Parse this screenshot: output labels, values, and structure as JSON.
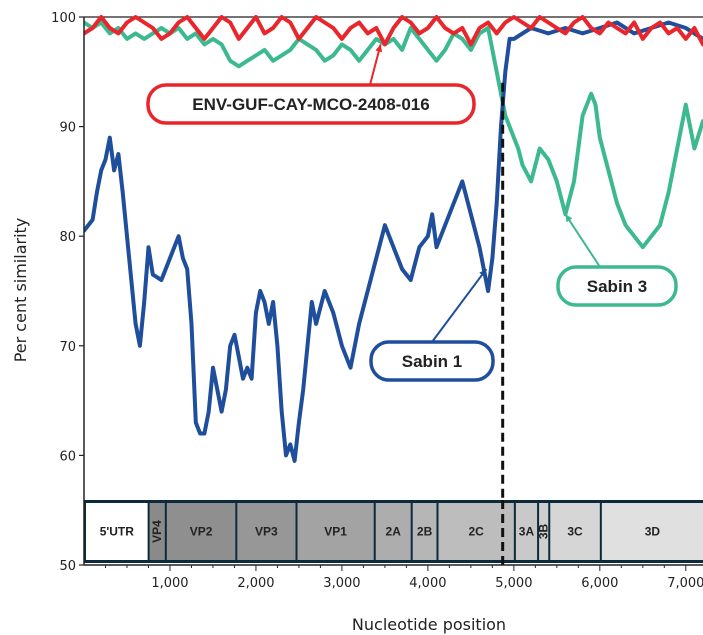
{
  "chart_data": {
    "type": "line",
    "xlabel": "Nucleotide position",
    "ylabel": "Per cent similarity",
    "xlim": [
      0,
      7200
    ],
    "ylim": [
      50,
      100
    ],
    "x_ticks": [
      1000,
      2000,
      3000,
      4000,
      5000,
      6000,
      7000
    ],
    "x_tick_labels": [
      "1,000",
      "2,000",
      "3,000",
      "4,000",
      "5,000",
      "6,000",
      "7,000"
    ],
    "y_ticks": [
      50,
      60,
      70,
      80,
      90,
      100
    ],
    "y_tick_labels": [
      "50",
      "60",
      "70",
      "80",
      "90",
      "100"
    ],
    "breakpoint_x": 4870,
    "series": [
      {
        "name": "Sabin 1",
        "color": "#1f4e9c",
        "points": [
          [
            0,
            80.5
          ],
          [
            100,
            81.5
          ],
          [
            150,
            84
          ],
          [
            200,
            86
          ],
          [
            250,
            87
          ],
          [
            300,
            89
          ],
          [
            350,
            86
          ],
          [
            400,
            87.5
          ],
          [
            450,
            84
          ],
          [
            500,
            80
          ],
          [
            550,
            76
          ],
          [
            600,
            72
          ],
          [
            650,
            70
          ],
          [
            700,
            74
          ],
          [
            750,
            79
          ],
          [
            800,
            76.5
          ],
          [
            900,
            76
          ],
          [
            1000,
            78
          ],
          [
            1100,
            80
          ],
          [
            1150,
            78
          ],
          [
            1200,
            77
          ],
          [
            1250,
            72
          ],
          [
            1300,
            63
          ],
          [
            1350,
            62
          ],
          [
            1400,
            62
          ],
          [
            1450,
            64
          ],
          [
            1500,
            68
          ],
          [
            1550,
            66
          ],
          [
            1600,
            64
          ],
          [
            1650,
            66
          ],
          [
            1700,
            70
          ],
          [
            1750,
            71
          ],
          [
            1800,
            69
          ],
          [
            1850,
            67
          ],
          [
            1900,
            68
          ],
          [
            1950,
            67
          ],
          [
            2000,
            73
          ],
          [
            2050,
            75
          ],
          [
            2100,
            74
          ],
          [
            2150,
            72
          ],
          [
            2200,
            74
          ],
          [
            2250,
            70
          ],
          [
            2300,
            64
          ],
          [
            2350,
            60
          ],
          [
            2400,
            61
          ],
          [
            2450,
            59.5
          ],
          [
            2500,
            63
          ],
          [
            2550,
            66
          ],
          [
            2600,
            70
          ],
          [
            2650,
            74
          ],
          [
            2700,
            72
          ],
          [
            2800,
            75
          ],
          [
            2900,
            73
          ],
          [
            3000,
            70
          ],
          [
            3100,
            68
          ],
          [
            3200,
            72
          ],
          [
            3300,
            75
          ],
          [
            3400,
            78
          ],
          [
            3500,
            81
          ],
          [
            3600,
            79
          ],
          [
            3700,
            77
          ],
          [
            3800,
            76
          ],
          [
            3900,
            79
          ],
          [
            4000,
            80
          ],
          [
            4050,
            82
          ],
          [
            4100,
            79
          ],
          [
            4200,
            81
          ],
          [
            4300,
            83
          ],
          [
            4400,
            85
          ],
          [
            4500,
            82
          ],
          [
            4600,
            79
          ],
          [
            4650,
            77
          ],
          [
            4700,
            75
          ],
          [
            4750,
            78
          ],
          [
            4800,
            83
          ],
          [
            4850,
            90
          ],
          [
            4900,
            95
          ],
          [
            4950,
            98
          ],
          [
            5000,
            98
          ],
          [
            5100,
            98.5
          ],
          [
            5200,
            99
          ],
          [
            5400,
            98.5
          ],
          [
            5600,
            99
          ],
          [
            5800,
            98.5
          ],
          [
            6000,
            99
          ],
          [
            6200,
            99.5
          ],
          [
            6400,
            98.5
          ],
          [
            6600,
            99
          ],
          [
            6800,
            99.5
          ],
          [
            7000,
            99
          ],
          [
            7200,
            98
          ]
        ]
      },
      {
        "name": "Sabin 3",
        "color": "#3db98f",
        "points": [
          [
            0,
            99.5
          ],
          [
            100,
            99
          ],
          [
            200,
            99.5
          ],
          [
            300,
            98.5
          ],
          [
            400,
            99
          ],
          [
            500,
            98
          ],
          [
            600,
            98.5
          ],
          [
            700,
            98
          ],
          [
            800,
            98.5
          ],
          [
            900,
            99
          ],
          [
            1000,
            98.5
          ],
          [
            1100,
            99
          ],
          [
            1200,
            98
          ],
          [
            1300,
            98.5
          ],
          [
            1400,
            97.5
          ],
          [
            1500,
            98
          ],
          [
            1600,
            97.5
          ],
          [
            1700,
            96
          ],
          [
            1800,
            95.5
          ],
          [
            1900,
            96
          ],
          [
            2000,
            96.5
          ],
          [
            2100,
            97
          ],
          [
            2200,
            96
          ],
          [
            2300,
            96.5
          ],
          [
            2400,
            97
          ],
          [
            2500,
            98
          ],
          [
            2600,
            97.5
          ],
          [
            2700,
            97
          ],
          [
            2800,
            96
          ],
          [
            2900,
            96.5
          ],
          [
            3000,
            97.5
          ],
          [
            3100,
            97
          ],
          [
            3200,
            96
          ],
          [
            3300,
            97
          ],
          [
            3400,
            98
          ],
          [
            3500,
            97.5
          ],
          [
            3600,
            98
          ],
          [
            3700,
            97
          ],
          [
            3800,
            99
          ],
          [
            3900,
            98
          ],
          [
            4000,
            97
          ],
          [
            4100,
            96
          ],
          [
            4200,
            97
          ],
          [
            4300,
            98.5
          ],
          [
            4400,
            98
          ],
          [
            4500,
            97
          ],
          [
            4600,
            98.5
          ],
          [
            4700,
            99
          ],
          [
            4750,
            97
          ],
          [
            4800,
            95
          ],
          [
            4850,
            93
          ],
          [
            4900,
            91
          ],
          [
            5000,
            89
          ],
          [
            5050,
            88
          ],
          [
            5100,
            86.5
          ],
          [
            5200,
            85
          ],
          [
            5300,
            88
          ],
          [
            5400,
            87
          ],
          [
            5500,
            85
          ],
          [
            5600,
            82
          ],
          [
            5700,
            85
          ],
          [
            5800,
            91
          ],
          [
            5900,
            93
          ],
          [
            5950,
            92
          ],
          [
            6000,
            89
          ],
          [
            6100,
            86
          ],
          [
            6200,
            83
          ],
          [
            6300,
            81
          ],
          [
            6400,
            80
          ],
          [
            6500,
            79
          ],
          [
            6600,
            80
          ],
          [
            6700,
            81
          ],
          [
            6800,
            84
          ],
          [
            6900,
            88
          ],
          [
            7000,
            92
          ],
          [
            7100,
            88
          ],
          [
            7200,
            90.5
          ]
        ]
      },
      {
        "name": "ENV-GUF-CAY-MCO-2408-016",
        "color": "#e8262b",
        "points": [
          [
            0,
            98.5
          ],
          [
            100,
            99
          ],
          [
            200,
            100
          ],
          [
            300,
            99
          ],
          [
            400,
            98.5
          ],
          [
            500,
            99.5
          ],
          [
            600,
            100
          ],
          [
            700,
            99.5
          ],
          [
            800,
            99
          ],
          [
            900,
            98
          ],
          [
            1000,
            98.5
          ],
          [
            1100,
            99.5
          ],
          [
            1200,
            100
          ],
          [
            1300,
            99
          ],
          [
            1400,
            98
          ],
          [
            1500,
            99
          ],
          [
            1600,
            100
          ],
          [
            1700,
            99.5
          ],
          [
            1800,
            98
          ],
          [
            1900,
            99
          ],
          [
            2000,
            100
          ],
          [
            2100,
            98.5
          ],
          [
            2200,
            99
          ],
          [
            2300,
            100
          ],
          [
            2400,
            99.5
          ],
          [
            2500,
            98
          ],
          [
            2600,
            99
          ],
          [
            2700,
            100
          ],
          [
            2800,
            99.5
          ],
          [
            2900,
            99
          ],
          [
            3000,
            98
          ],
          [
            3100,
            99
          ],
          [
            3200,
            99.5
          ],
          [
            3300,
            98.5
          ],
          [
            3400,
            99
          ],
          [
            3500,
            97.5
          ],
          [
            3600,
            99
          ],
          [
            3700,
            100
          ],
          [
            3800,
            99.5
          ],
          [
            3900,
            98.5
          ],
          [
            4000,
            99
          ],
          [
            4100,
            100
          ],
          [
            4200,
            99
          ],
          [
            4300,
            98.5
          ],
          [
            4400,
            99
          ],
          [
            4500,
            97.5
          ],
          [
            4600,
            99
          ],
          [
            4700,
            99.5
          ],
          [
            4800,
            98.5
          ],
          [
            4900,
            99.5
          ],
          [
            5000,
            100
          ],
          [
            5100,
            99.5
          ],
          [
            5200,
            99
          ],
          [
            5300,
            100
          ],
          [
            5400,
            99.5
          ],
          [
            5500,
            99
          ],
          [
            5600,
            98.5
          ],
          [
            5700,
            99.5
          ],
          [
            5800,
            100
          ],
          [
            5900,
            99
          ],
          [
            6000,
            98.5
          ],
          [
            6100,
            99.5
          ],
          [
            6200,
            99
          ],
          [
            6300,
            98.5
          ],
          [
            6400,
            99.5
          ],
          [
            6500,
            98
          ],
          [
            6600,
            99
          ],
          [
            6700,
            99.5
          ],
          [
            6800,
            98.5
          ],
          [
            6900,
            99
          ],
          [
            7000,
            98
          ],
          [
            7100,
            99
          ],
          [
            7200,
            97.5
          ]
        ]
      }
    ],
    "callouts": [
      {
        "series": "ENV-GUF-CAY-MCO-2408-016",
        "text": "ENV-GUF-CAY-MCO-2408-016",
        "color": "#e8262b",
        "anchor_x": 3450,
        "anchor_y": 97.5
      },
      {
        "series": "Sabin 1",
        "text": "Sabin 1",
        "color": "#1f4e9c",
        "anchor_x": 4680,
        "anchor_y": 77
      },
      {
        "series": "Sabin 3",
        "text": "Sabin 3",
        "color": "#3db98f",
        "anchor_x": 5600,
        "anchor_y": 82
      }
    ],
    "genome_regions": [
      {
        "label": "5'UTR",
        "start": 0,
        "end": 740,
        "color": "#ffffff",
        "rotated": false
      },
      {
        "label": "VP4",
        "start": 740,
        "end": 940,
        "color": "#8a8a8a",
        "rotated": true
      },
      {
        "label": "VP2",
        "start": 940,
        "end": 1760,
        "color": "#8f8f8f",
        "rotated": false
      },
      {
        "label": "VP3",
        "start": 1760,
        "end": 2460,
        "color": "#979797",
        "rotated": false
      },
      {
        "label": "VP1",
        "start": 2460,
        "end": 3370,
        "color": "#a3a3a3",
        "rotated": false
      },
      {
        "label": "2A",
        "start": 3370,
        "end": 3800,
        "color": "#adadad",
        "rotated": false
      },
      {
        "label": "2B",
        "start": 3800,
        "end": 4100,
        "color": "#b6b6b6",
        "rotated": false
      },
      {
        "label": "2C",
        "start": 4100,
        "end": 5000,
        "color": "#bdbdbd",
        "rotated": false
      },
      {
        "label": "3A",
        "start": 5000,
        "end": 5270,
        "color": "#c9c9c9",
        "rotated": false
      },
      {
        "label": "3B",
        "start": 5270,
        "end": 5400,
        "color": "#cfcfcf",
        "rotated": true
      },
      {
        "label": "3C",
        "start": 5400,
        "end": 6000,
        "color": "#d6d6d6",
        "rotated": false
      },
      {
        "label": "3D",
        "start": 6000,
        "end": 7200,
        "color": "#e0e0e0",
        "rotated": false
      }
    ]
  }
}
